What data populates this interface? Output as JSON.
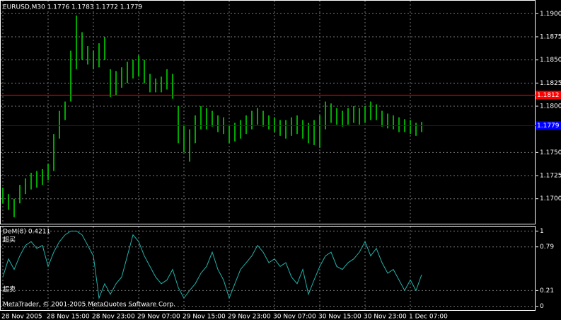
{
  "chart_data": [
    {
      "type": "ohlc",
      "title": "EURUSD,M30  1.1776 1.1783 1.1772 1.1779",
      "color": "#00e000",
      "high": [
        1.1712,
        1.1705,
        1.17,
        1.1715,
        1.1722,
        1.1728,
        1.173,
        1.1732,
        1.1738,
        1.177,
        1.1795,
        1.1805,
        1.186,
        1.1898,
        1.188,
        1.1865,
        1.186,
        1.1868,
        1.1875,
        1.184,
        1.1838,
        1.1842,
        1.1848,
        1.185,
        1.1855,
        1.185,
        1.1835,
        1.183,
        1.1832,
        1.184,
        1.1835,
        1.18,
        1.178,
        1.1775,
        1.179,
        1.18,
        1.1798,
        1.1795,
        1.179,
        1.1788,
        1.178,
        1.1782,
        1.1785,
        1.179,
        1.1795,
        1.1798,
        1.1795,
        1.179,
        1.1788,
        1.1785,
        1.1785,
        1.1788,
        1.179,
        1.1785,
        1.1782,
        1.1785,
        1.179,
        1.1805,
        1.1803,
        1.1798,
        1.1795,
        1.1798,
        1.18,
        1.1798,
        1.18,
        1.1805,
        1.1802,
        1.1795,
        1.1792,
        1.179,
        1.1788,
        1.1786,
        1.1785,
        1.1782,
        1.1783
      ],
      "low": [
        1.1695,
        1.1688,
        1.168,
        1.1695,
        1.1705,
        1.171,
        1.1712,
        1.1715,
        1.172,
        1.173,
        1.1765,
        1.1785,
        1.1805,
        1.184,
        1.185,
        1.1845,
        1.184,
        1.1842,
        1.185,
        1.181,
        1.1812,
        1.182,
        1.1825,
        1.183,
        1.1832,
        1.1825,
        1.1815,
        1.1815,
        1.1815,
        1.1818,
        1.1808,
        1.176,
        1.175,
        1.174,
        1.176,
        1.1775,
        1.1775,
        1.1778,
        1.1772,
        1.177,
        1.176,
        1.1762,
        1.1765,
        1.177,
        1.1775,
        1.178,
        1.1778,
        1.1775,
        1.1772,
        1.1768,
        1.1765,
        1.1768,
        1.177,
        1.1765,
        1.176,
        1.1758,
        1.1755,
        1.1775,
        1.1782,
        1.178,
        1.1778,
        1.178,
        1.1782,
        1.178,
        1.1782,
        1.1785,
        1.1785,
        1.1778,
        1.1776,
        1.1775,
        1.1772,
        1.1772,
        1.177,
        1.1768,
        1.1772
      ],
      "ylim": [
        1.1673,
        1.1914
      ],
      "yticks": [
        {
          "value": 1.19,
          "label": "1.1900"
        },
        {
          "value": 1.1875,
          "label": "1.1875"
        },
        {
          "value": 1.185,
          "label": "1.1850"
        },
        {
          "value": 1.1825,
          "label": "1.1825"
        },
        {
          "value": 1.18,
          "label": "1.1800"
        },
        {
          "value": 1.175,
          "label": "1.1750"
        },
        {
          "value": 1.1725,
          "label": "1.1725"
        },
        {
          "value": 1.17,
          "label": "1.1700"
        }
      ],
      "lines": [
        {
          "value": 1.1812,
          "color": "#ff0000"
        },
        {
          "value": 1.1779,
          "color": "#0000ff"
        }
      ],
      "grid": true
    },
    {
      "type": "line",
      "title": "DeM(8) 0.4211",
      "color": "#20b2aa",
      "categories": [
        "28 Nov 2005",
        null,
        null,
        null,
        null,
        null,
        null,
        null,
        "28 Nov 15:00",
        null,
        null,
        null,
        null,
        null,
        null,
        null,
        "28 Nov 23:00",
        null,
        null,
        null,
        null,
        null,
        null,
        null,
        "29 Nov 07:00",
        null,
        null,
        null,
        null,
        null,
        null,
        null,
        "29 Nov 15:00",
        null,
        null,
        null,
        null,
        null,
        null,
        null,
        "29 Nov 23:00",
        null,
        null,
        null,
        null,
        null,
        null,
        null,
        "30 Nov 07:00",
        null,
        null,
        null,
        null,
        null,
        null,
        null,
        "30 Nov 15:00",
        null,
        null,
        null,
        null,
        null,
        null,
        null,
        "30 Nov 23:00",
        null,
        null,
        null,
        null,
        null,
        null,
        null,
        "1 Dec 07:00",
        null,
        null
      ],
      "values": [
        0.39,
        0.63,
        0.49,
        0.67,
        0.81,
        0.86,
        0.77,
        0.81,
        0.53,
        0.72,
        0.86,
        0.95,
        1.0,
        1.0,
        0.95,
        0.81,
        0.67,
        0.11,
        0.3,
        0.16,
        0.3,
        0.39,
        0.67,
        0.95,
        0.86,
        0.67,
        0.53,
        0.39,
        0.3,
        0.35,
        0.49,
        0.25,
        0.11,
        0.21,
        0.3,
        0.44,
        0.53,
        0.72,
        0.49,
        0.35,
        0.11,
        0.3,
        0.49,
        0.58,
        0.67,
        0.81,
        0.72,
        0.58,
        0.63,
        0.53,
        0.58,
        0.39,
        0.3,
        0.49,
        0.16,
        0.35,
        0.53,
        0.67,
        0.72,
        0.53,
        0.49,
        0.58,
        0.63,
        0.72,
        0.86,
        0.67,
        0.77,
        0.58,
        0.44,
        0.49,
        0.35,
        0.21,
        0.35,
        0.21,
        0.42
      ],
      "ylim": [
        -0.05,
        1.06
      ],
      "yticks": [
        1,
        0.79,
        0.21,
        0
      ],
      "overbought": "超买",
      "oversold": "超卖",
      "footer": "MetaTrader, © 2001-2005 MetaQuotes Software Corp.",
      "grid": true
    }
  ]
}
